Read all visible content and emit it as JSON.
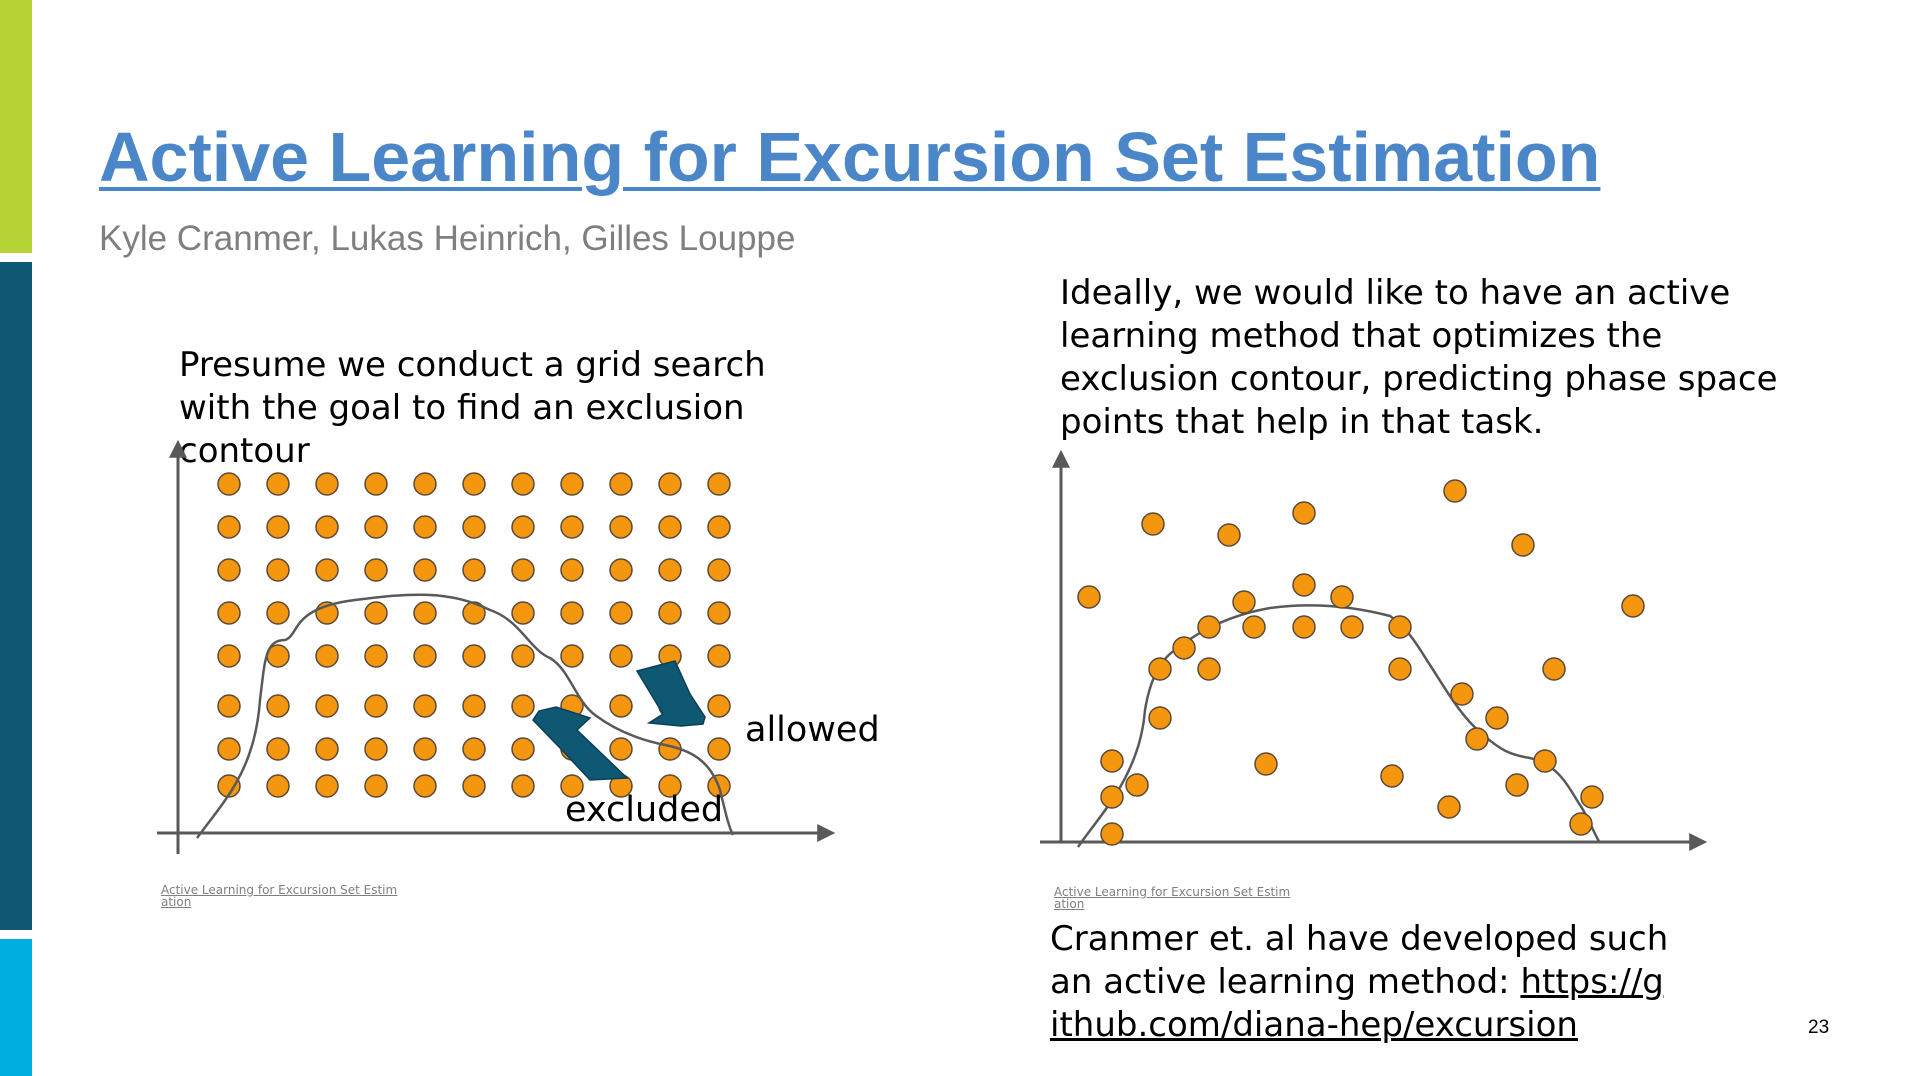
{
  "slide": {
    "title": "Active Learning for Excursion Set Estimation",
    "authors": "Kyle Cranmer, Lukas Heinrich, Gilles Louppe",
    "left_text": "Presume we conduct a grid search with the goal to find an exclusion contour",
    "right_text": "Ideally, we would like to have an active learning method that optimizes the exclusion contour, predicting phase space points that help in that task.",
    "developed_text": "Cranmer et. al have developed such an active learning method:",
    "repo_link": "https://github.com/diana-hep/excursion",
    "caption_left": "Active Learning for Excursion Set Estimation",
    "caption_right": "Active Learning for Excursion Set Estimation",
    "label_allowed": "allowed",
    "label_excluded": "excluded",
    "page_number": "23"
  },
  "colors": {
    "title": "#4a86c8",
    "point_fill": "#f5960f",
    "point_stroke": "#5a4a3a",
    "arrow": "#0f5873",
    "curve": "#595959",
    "bar_green": "#b5d334",
    "bar_navy": "#0f5873",
    "bar_cyan": "#00aee0"
  }
}
